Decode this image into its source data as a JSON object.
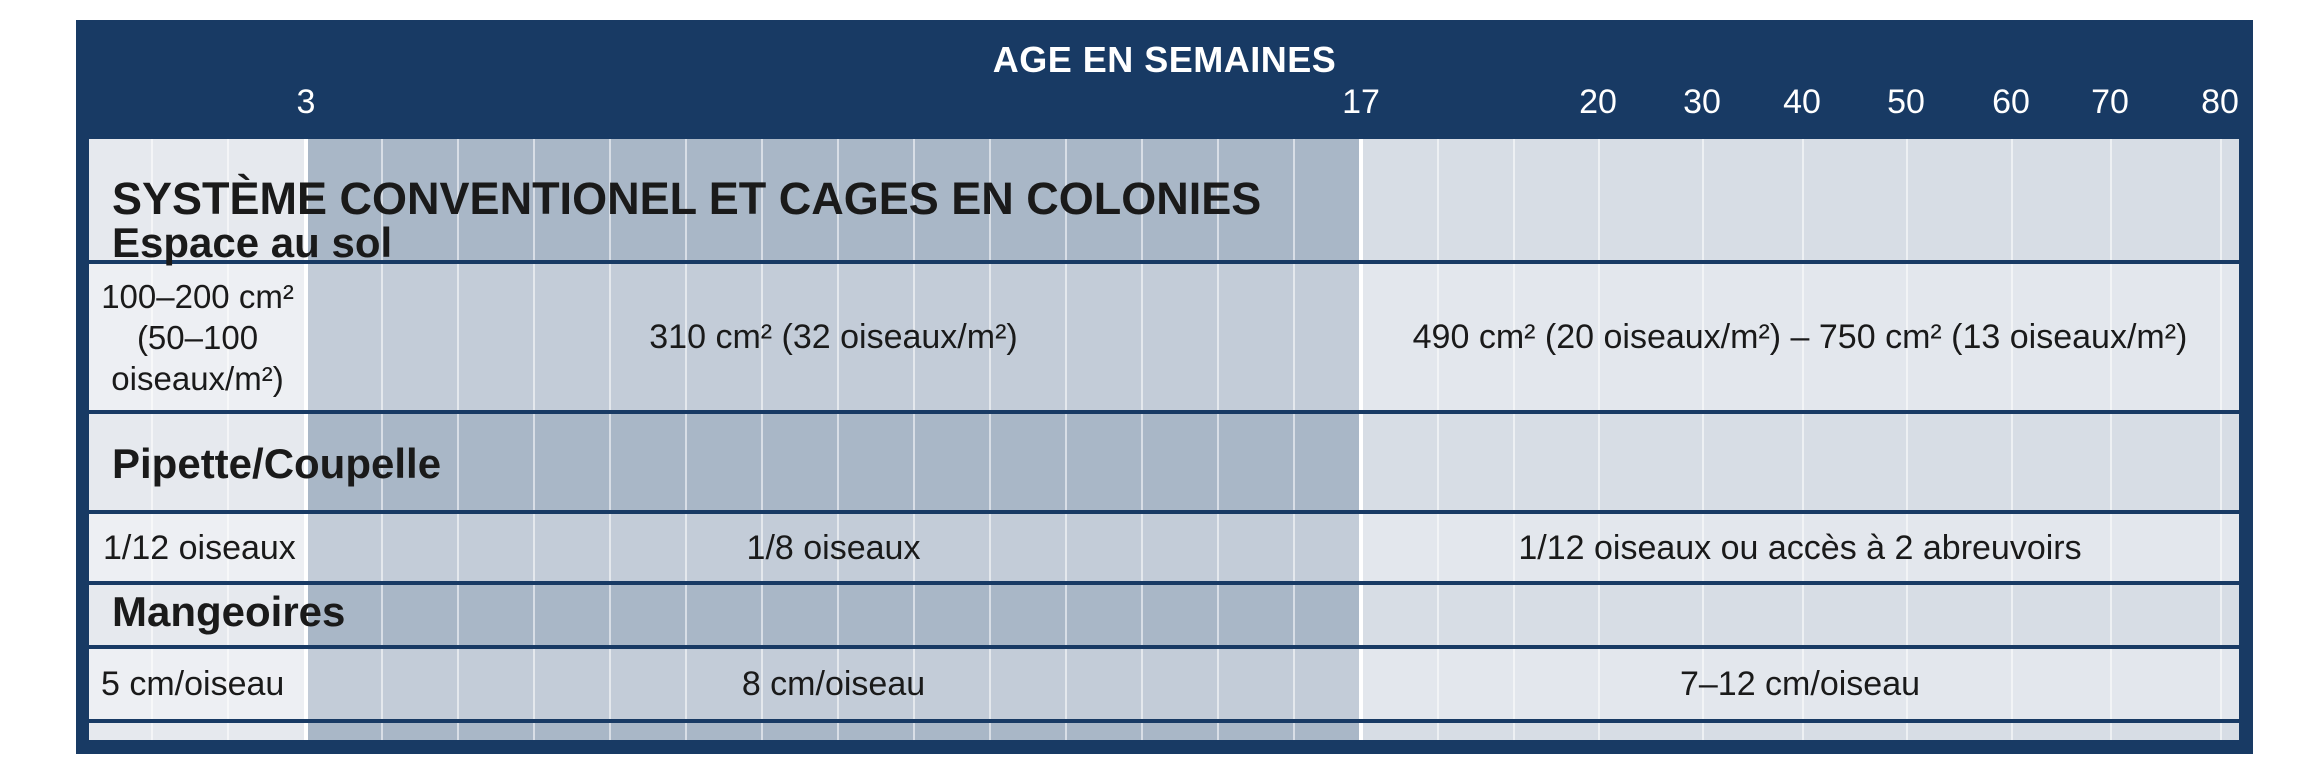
{
  "header": {
    "title": "AGE EN SEMAINES",
    "ticks": [
      "3",
      "17",
      "20",
      "30",
      "40",
      "50",
      "60",
      "70",
      "80"
    ]
  },
  "colors": {
    "frame": "#183a64",
    "zone_early": "#e6e9ee",
    "zone_growth": "#a9b7c7",
    "zone_laying": "#d7dde5"
  },
  "title": "SYSTÈME CONVENTIONEL ET CAGES EN COLONIES",
  "sections": [
    {
      "heading": "Espace au sol",
      "cells": [
        "100–200 cm²\n(50–100\noiseaux/m²)",
        "310 cm² (32 oiseaux/m²)",
        "490 cm² (20 oiseaux/m²) – 750 cm² (13 oiseaux/m²)"
      ]
    },
    {
      "heading": "Pipette/Coupelle",
      "cells": [
        "1/12 oiseaux",
        "1/8 oiseaux",
        "1/12 oiseaux ou accès à 2 abreuvoirs"
      ]
    },
    {
      "heading": "Mangeoires",
      "cells": [
        "5 cm/oiseau",
        "8 cm/oiseau",
        "7–12 cm/oiseau"
      ]
    }
  ]
}
